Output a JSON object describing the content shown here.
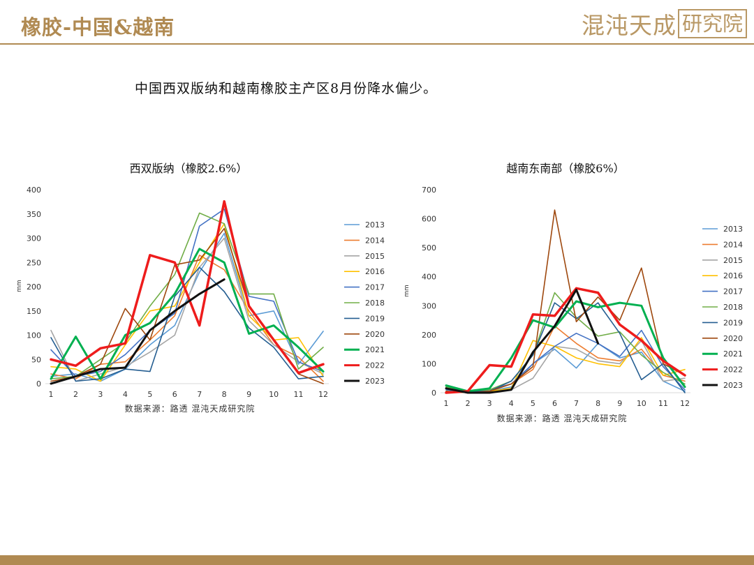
{
  "header": {
    "title": "橡胶-中国&越南",
    "logo_main": "混沌天成",
    "logo_box": "研究院"
  },
  "subtitle": "中国西双版纳和越南橡胶主产区8月份降水偏少。",
  "chart_data": [
    {
      "type": "line",
      "title": "西双版纳（橡胶2.6%）",
      "ylabel": "mm",
      "source": "数据来源：路透  混沌天成研究院",
      "categories": [
        "1",
        "2",
        "3",
        "4",
        "5",
        "6",
        "7",
        "8",
        "9",
        "10",
        "11",
        "12"
      ],
      "ylim": [
        0,
        400
      ],
      "yticks": [
        0,
        50,
        100,
        150,
        200,
        250,
        300,
        350,
        400
      ],
      "legend_position": "right",
      "series": [
        {
          "name": "2013",
          "color": "#5b9bd5",
          "width": 1.6,
          "values": [
            15,
            20,
            5,
            30,
            80,
            120,
            230,
            310,
            140,
            150,
            40,
            108
          ]
        },
        {
          "name": "2014",
          "color": "#ed7d31",
          "width": 1.6,
          "values": [
            20,
            10,
            40,
            45,
            90,
            140,
            265,
            235,
            150,
            80,
            55,
            5
          ]
        },
        {
          "name": "2015",
          "color": "#a5a5a5",
          "width": 1.6,
          "values": [
            110,
            5,
            20,
            35,
            65,
            100,
            240,
            300,
            130,
            80,
            45,
            20
          ]
        },
        {
          "name": "2016",
          "color": "#ffc000",
          "width": 1.6,
          "values": [
            35,
            30,
            5,
            80,
            150,
            160,
            250,
            330,
            140,
            90,
            95,
            15
          ]
        },
        {
          "name": "2017",
          "color": "#4472c4",
          "width": 1.6,
          "values": [
            70,
            15,
            25,
            60,
            110,
            145,
            325,
            360,
            180,
            170,
            45,
            25
          ]
        },
        {
          "name": "2018",
          "color": "#70ad47",
          "width": 1.6,
          "values": [
            10,
            15,
            50,
            85,
            160,
            225,
            352,
            330,
            185,
            185,
            30,
            75
          ]
        },
        {
          "name": "2019",
          "color": "#255e91",
          "width": 1.6,
          "values": [
            95,
            5,
            10,
            30,
            25,
            180,
            240,
            190,
            115,
            75,
            10,
            15
          ]
        },
        {
          "name": "2020",
          "color": "#9e480e",
          "width": 1.6,
          "values": [
            5,
            15,
            40,
            155,
            90,
            245,
            255,
            320,
            160,
            90,
            20,
            0
          ]
        },
        {
          "name": "2021",
          "color": "#00b050",
          "width": 3.0,
          "values": [
            10,
            97,
            10,
            100,
            125,
            185,
            278,
            250,
            103,
            120,
            75,
            25
          ]
        },
        {
          "name": "2022",
          "color": "#ee1c1c",
          "width": 3.5,
          "values": [
            50,
            37,
            73,
            83,
            265,
            250,
            120,
            376,
            160,
            90,
            22,
            40
          ]
        },
        {
          "name": "2023",
          "color": "#111111",
          "width": 3.0,
          "values": [
            0,
            15,
            30,
            33,
            110,
            150,
            185,
            215,
            null,
            null,
            null,
            null
          ]
        }
      ]
    },
    {
      "type": "line",
      "title": "越南东南部（橡胶6%）",
      "ylabel": "mm",
      "source": "数据来源：路透  混沌天成研究院",
      "categories": [
        "1",
        "2",
        "3",
        "4",
        "5",
        "6",
        "7",
        "8",
        "9",
        "10",
        "11",
        "12"
      ],
      "ylim": [
        0,
        700
      ],
      "yticks": [
        0,
        100,
        200,
        300,
        400,
        500,
        600,
        700
      ],
      "legend_position": "right",
      "series": [
        {
          "name": "2013",
          "color": "#5b9bd5",
          "width": 1.6,
          "values": [
            10,
            0,
            5,
            20,
            100,
            150,
            85,
            170,
            120,
            140,
            40,
            5
          ]
        },
        {
          "name": "2014",
          "color": "#ed7d31",
          "width": 1.6,
          "values": [
            5,
            0,
            10,
            30,
            80,
            230,
            170,
            120,
            110,
            150,
            60,
            40
          ]
        },
        {
          "name": "2015",
          "color": "#a5a5a5",
          "width": 1.6,
          "values": [
            20,
            5,
            0,
            10,
            50,
            160,
            150,
            110,
            100,
            180,
            40,
            50
          ]
        },
        {
          "name": "2016",
          "color": "#ffc000",
          "width": 1.6,
          "values": [
            5,
            0,
            5,
            15,
            180,
            160,
            120,
            100,
            90,
            190,
            60,
            80
          ]
        },
        {
          "name": "2017",
          "color": "#4472c4",
          "width": 1.6,
          "values": [
            10,
            0,
            10,
            30,
            100,
            160,
            205,
            170,
            125,
            215,
            90,
            10
          ]
        },
        {
          "name": "2018",
          "color": "#70ad47",
          "width": 1.6,
          "values": [
            20,
            5,
            10,
            40,
            130,
            345,
            260,
            195,
            210,
            130,
            70,
            30
          ]
        },
        {
          "name": "2019",
          "color": "#255e91",
          "width": 1.6,
          "values": [
            15,
            5,
            5,
            40,
            130,
            310,
            255,
            310,
            205,
            45,
            100,
            0
          ]
        },
        {
          "name": "2020",
          "color": "#9e480e",
          "width": 1.6,
          "values": [
            5,
            0,
            5,
            30,
            90,
            630,
            245,
            330,
            250,
            430,
            100,
            60
          ]
        },
        {
          "name": "2021",
          "color": "#00b050",
          "width": 3.0,
          "values": [
            25,
            5,
            15,
            120,
            250,
            225,
            315,
            295,
            310,
            300,
            120,
            20
          ]
        },
        {
          "name": "2022",
          "color": "#ee1c1c",
          "width": 3.5,
          "values": [
            0,
            5,
            95,
            90,
            270,
            265,
            360,
            345,
            235,
            180,
            110,
            60
          ]
        },
        {
          "name": "2023",
          "color": "#111111",
          "width": 3.0,
          "values": [
            15,
            0,
            0,
            10,
            140,
            230,
            355,
            170,
            null,
            null,
            null,
            null
          ]
        }
      ]
    }
  ]
}
